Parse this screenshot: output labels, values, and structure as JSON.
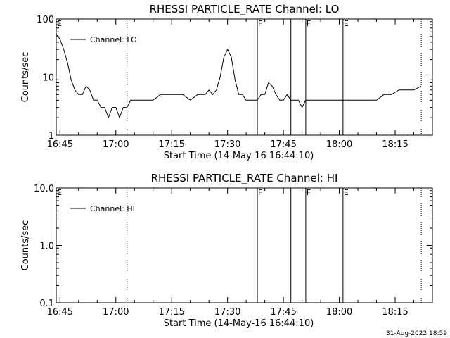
{
  "footer_date": "31-Aug-2022 18:59",
  "chart_data": [
    {
      "type": "line",
      "title": "RHESSI PARTICLE_RATE Channel: LO",
      "xlabel": "Start Time (14-May-16 16:44:10)",
      "ylabel": "Counts/sec",
      "y_scale": "log",
      "ylim": [
        1,
        100
      ],
      "xlim": [
        "16:44",
        "18:25"
      ],
      "y_ticks": [
        {
          "value": 1,
          "label": "1"
        },
        {
          "value": 10,
          "label": "10"
        },
        {
          "value": 100,
          "label": "100"
        }
      ],
      "x_ticks": [
        "16:45",
        "17:00",
        "17:15",
        "17:30",
        "17:45",
        "18:00",
        "18:15"
      ],
      "legend": {
        "position": "top-left",
        "label": "Channel: LO"
      },
      "dotted_lines": [
        "17:03",
        "18:22"
      ],
      "solid_lines": [
        "17:38",
        "17:47",
        "17:51",
        "18:01"
      ],
      "markers": [
        {
          "time": "16:44",
          "label": "E"
        },
        {
          "time": "17:38",
          "label": "F"
        },
        {
          "time": "17:51",
          "label": "F"
        },
        {
          "time": "18:01",
          "label": "E"
        }
      ],
      "series": [
        {
          "x": [
            "16:44",
            "16:45",
            "16:46",
            "16:47",
            "16:48",
            "16:49",
            "16:50",
            "16:51",
            "16:52",
            "16:53",
            "16:54",
            "16:55",
            "16:56",
            "16:57",
            "16:58",
            "16:59",
            "17:00",
            "17:01",
            "17:02",
            "17:03",
            "17:04",
            "17:05",
            "17:06",
            "17:08",
            "17:10",
            "17:12",
            "17:14",
            "17:16",
            "17:18",
            "17:20",
            "17:22",
            "17:24",
            "17:25",
            "17:26",
            "17:27",
            "17:28",
            "17:29",
            "17:30",
            "17:31",
            "17:32",
            "17:33",
            "17:34",
            "17:35",
            "17:36",
            "17:37",
            "17:38",
            "17:39",
            "17:40",
            "17:41",
            "17:42",
            "17:43",
            "17:44",
            "17:45",
            "17:46",
            "17:47",
            "17:48",
            "17:49",
            "17:50",
            "17:51",
            "17:52",
            "17:54",
            "17:56",
            "17:58",
            "18:00",
            "18:02",
            "18:04",
            "18:06",
            "18:08",
            "18:10",
            "18:12",
            "18:14",
            "18:16",
            "18:18",
            "18:20",
            "18:22"
          ],
          "y": [
            55,
            45,
            30,
            18,
            9,
            6,
            5,
            5,
            7,
            6,
            4,
            4,
            3,
            3,
            2,
            3,
            3,
            2,
            3,
            3,
            4,
            4,
            4,
            4,
            4,
            5,
            5,
            5,
            5,
            4,
            5,
            5,
            6,
            5,
            6,
            10,
            22,
            30,
            22,
            9,
            5,
            5,
            4,
            4,
            4,
            4,
            5,
            5,
            8,
            7,
            5,
            4,
            4,
            5,
            4,
            4,
            4,
            3,
            4,
            4,
            4,
            4,
            4,
            4,
            4,
            4,
            4,
            4,
            4,
            5,
            5,
            6,
            6,
            6,
            7
          ]
        }
      ]
    },
    {
      "type": "line",
      "title": "RHESSI PARTICLE_RATE Channel: HI",
      "xlabel": "Start Time (14-May-16 16:44:10)",
      "ylabel": "Counts/sec",
      "y_scale": "log",
      "ylim": [
        0.1,
        10
      ],
      "xlim": [
        "16:44",
        "18:25"
      ],
      "y_ticks": [
        {
          "value": 0.1,
          "label": "0.1"
        },
        {
          "value": 1,
          "label": "1.0"
        },
        {
          "value": 10,
          "label": "10.0"
        }
      ],
      "x_ticks": [
        "16:45",
        "17:00",
        "17:15",
        "17:30",
        "17:45",
        "18:00",
        "18:15"
      ],
      "legend": {
        "position": "top-left",
        "label": "Channel: HI"
      },
      "dotted_lines": [
        "17:03",
        "18:22"
      ],
      "solid_lines": [
        "17:38",
        "17:47",
        "17:51",
        "18:01"
      ],
      "markers": [
        {
          "time": "16:44",
          "label": "E"
        },
        {
          "time": "17:38",
          "label": "F"
        },
        {
          "time": "17:51",
          "label": "F"
        },
        {
          "time": "18:01",
          "label": "E"
        }
      ],
      "series": []
    }
  ]
}
